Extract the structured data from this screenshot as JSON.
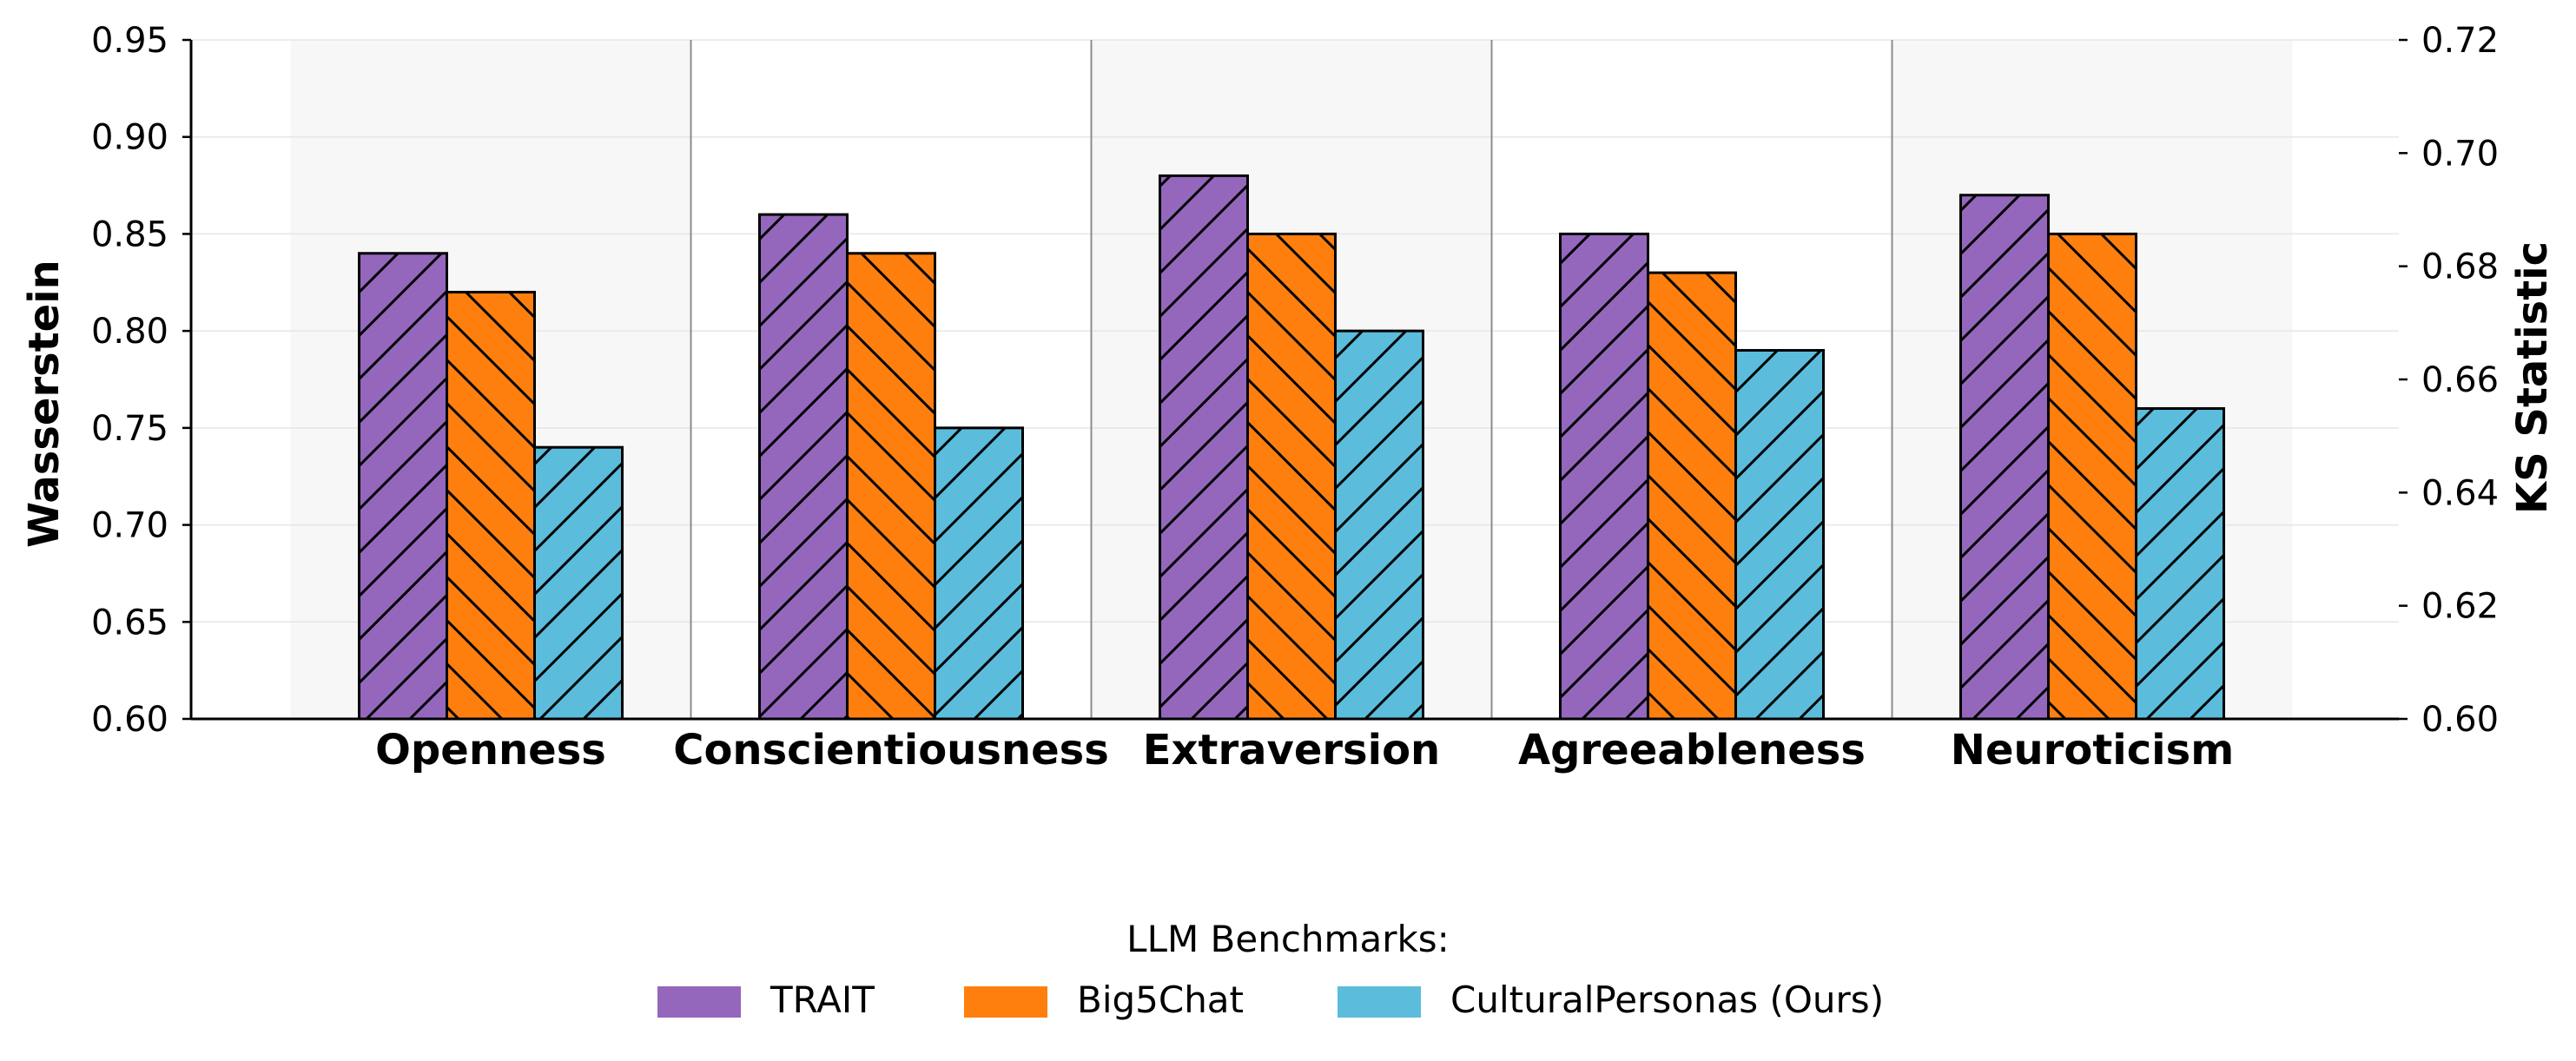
{
  "chart_data": {
    "type": "bar",
    "categories": [
      "Openness",
      "Conscientiousness",
      "Extraversion",
      "Agreeableness",
      "Neuroticism"
    ],
    "series": [
      {
        "name": "TRAIT",
        "values": [
          0.84,
          0.86,
          0.88,
          0.85,
          0.87
        ],
        "color": "#9467bd",
        "hatch": "forward"
      },
      {
        "name": "Big5Chat",
        "values": [
          0.82,
          0.84,
          0.85,
          0.83,
          0.85
        ],
        "color": "#ff7f0e",
        "hatch": "backward"
      },
      {
        "name": "CulturalPersonas (Ours)",
        "values": [
          0.74,
          0.75,
          0.8,
          0.79,
          0.76
        ],
        "color": "#5bbcdc",
        "hatch": "forward"
      }
    ],
    "ylabel": "Wasserstein",
    "y2label": "KS Statistic",
    "ylim": [
      0.6,
      0.95
    ],
    "y2lim": [
      0.6,
      0.72
    ],
    "yticks": [
      "0.60",
      "0.65",
      "0.70",
      "0.75",
      "0.80",
      "0.85",
      "0.90",
      "0.95"
    ],
    "y2ticks": [
      "0.60",
      "0.62",
      "0.64",
      "0.66",
      "0.68",
      "0.70",
      "0.72"
    ],
    "grid": "horizontal",
    "legend": {
      "title": "LLM Benchmarks:",
      "placement": "bottom-center"
    }
  }
}
